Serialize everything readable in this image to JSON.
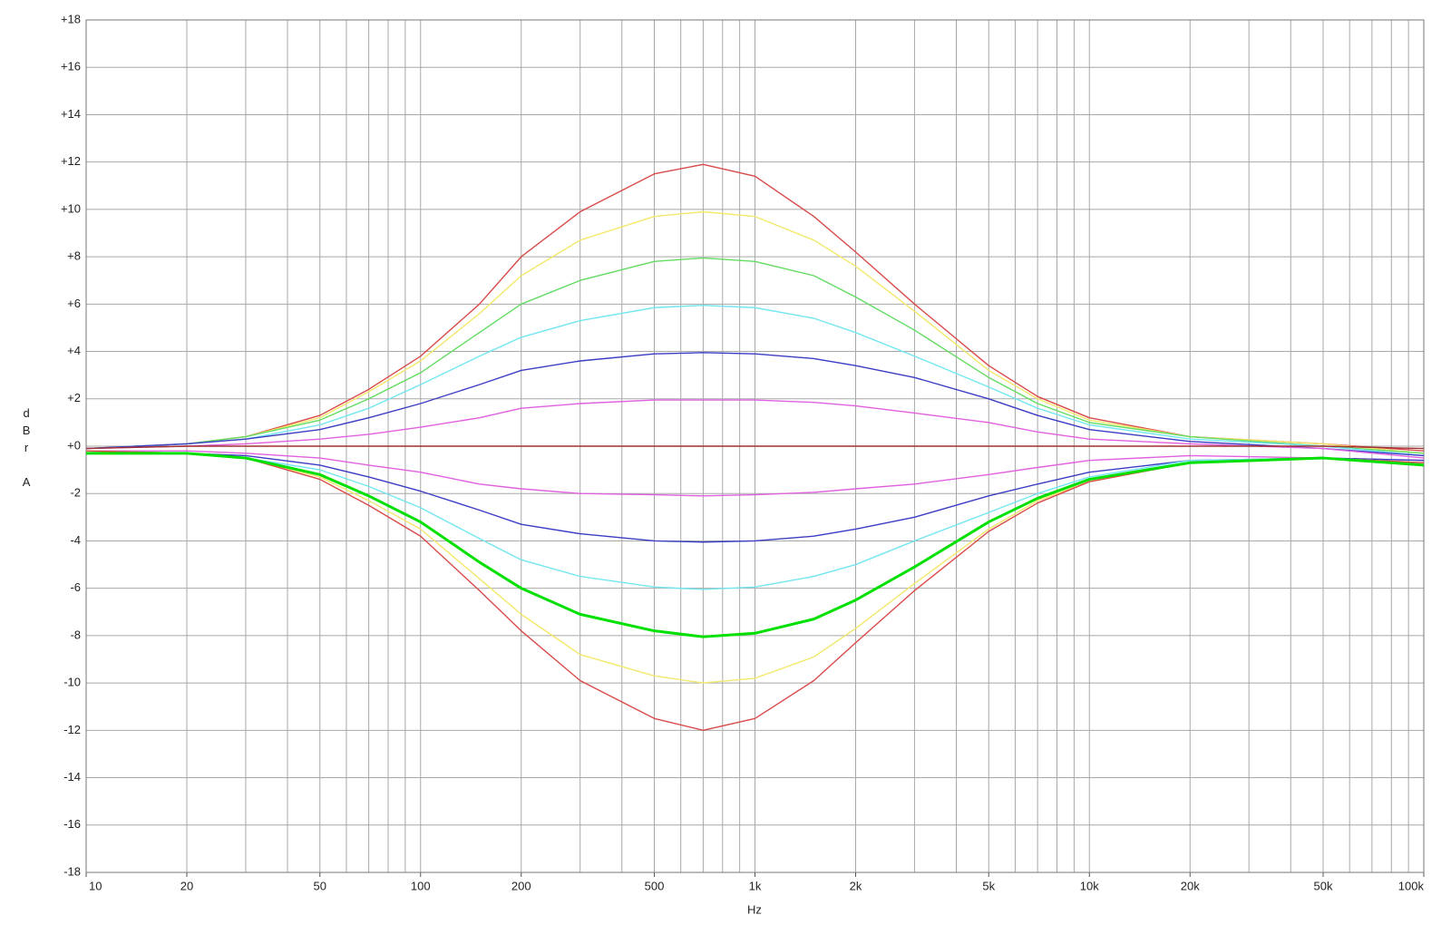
{
  "chart_data": {
    "type": "line",
    "x_label": "Hz",
    "y_label": "dBr A",
    "xscale": "log",
    "xlim": [
      10,
      100000
    ],
    "ylim": [
      -18,
      18
    ],
    "xgrid": [
      10,
      20,
      30,
      40,
      50,
      60,
      70,
      80,
      90,
      100,
      200,
      300,
      400,
      500,
      600,
      700,
      800,
      900,
      1000,
      2000,
      3000,
      4000,
      5000,
      6000,
      7000,
      8000,
      9000,
      10000,
      20000,
      30000,
      40000,
      50000,
      60000,
      70000,
      80000,
      90000,
      100000
    ],
    "xticks": [
      {
        "value": 10,
        "label": "10"
      },
      {
        "value": 20,
        "label": "20"
      },
      {
        "value": 50,
        "label": "50"
      },
      {
        "value": 100,
        "label": "100"
      },
      {
        "value": 200,
        "label": "200"
      },
      {
        "value": 500,
        "label": "500"
      },
      {
        "value": 1000,
        "label": "1k"
      },
      {
        "value": 2000,
        "label": "2k"
      },
      {
        "value": 5000,
        "label": "5k"
      },
      {
        "value": 10000,
        "label": "10k"
      },
      {
        "value": 20000,
        "label": "20k"
      },
      {
        "value": 50000,
        "label": "50k"
      },
      {
        "value": 100000,
        "label": "100k"
      }
    ],
    "yticks": [
      {
        "value": 18,
        "label": "+18"
      },
      {
        "value": 16,
        "label": "+16"
      },
      {
        "value": 14,
        "label": "+14"
      },
      {
        "value": 12,
        "label": "+12"
      },
      {
        "value": 10,
        "label": "+10"
      },
      {
        "value": 8,
        "label": "+8"
      },
      {
        "value": 6,
        "label": "+6"
      },
      {
        "value": 4,
        "label": "+4"
      },
      {
        "value": 2,
        "label": "+2"
      },
      {
        "value": 0,
        "label": "+0"
      },
      -2,
      -4,
      -6,
      -8,
      -10,
      -12,
      -14,
      -16,
      -18
    ],
    "grid": true,
    "x": [
      10,
      20,
      30,
      50,
      70,
      100,
      150,
      200,
      300,
      500,
      700,
      1000,
      1500,
      2000,
      3000,
      5000,
      7000,
      10000,
      20000,
      50000,
      100000
    ],
    "series": [
      {
        "color": "#d94a4a",
        "values": [
          -0.1,
          0.1,
          0.4,
          1.3,
          2.4,
          3.8,
          6.0,
          8.0,
          9.9,
          11.5,
          11.9,
          11.4,
          9.7,
          8.2,
          6.0,
          3.4,
          2.1,
          1.2,
          0.4,
          0.1,
          -0.2
        ]
      },
      {
        "color": "#f2e86a",
        "values": [
          -0.1,
          0.1,
          0.4,
          1.2,
          2.3,
          3.6,
          5.6,
          7.2,
          8.7,
          9.7,
          9.9,
          9.7,
          8.7,
          7.6,
          5.7,
          3.2,
          2.0,
          1.1,
          0.4,
          0.1,
          -0.3
        ]
      },
      {
        "color": "#62dc62",
        "values": [
          -0.1,
          0.1,
          0.4,
          1.1,
          2.0,
          3.1,
          4.8,
          6.0,
          7.0,
          7.8,
          7.95,
          7.8,
          7.2,
          6.3,
          4.9,
          2.9,
          1.8,
          1.0,
          0.4,
          0.0,
          -0.3
        ]
      },
      {
        "color": "#72e6f0",
        "values": [
          -0.1,
          0.1,
          0.3,
          0.9,
          1.6,
          2.6,
          3.8,
          4.6,
          5.3,
          5.85,
          5.95,
          5.85,
          5.4,
          4.8,
          3.8,
          2.5,
          1.6,
          0.9,
          0.3,
          0.0,
          -0.4
        ]
      },
      {
        "color": "#3c3cc4",
        "values": [
          -0.1,
          0.1,
          0.3,
          0.7,
          1.2,
          1.8,
          2.6,
          3.2,
          3.6,
          3.9,
          3.95,
          3.9,
          3.7,
          3.4,
          2.9,
          2.0,
          1.3,
          0.7,
          0.2,
          -0.1,
          -0.4
        ]
      },
      {
        "color": "#e060e0",
        "values": [
          -0.1,
          0.0,
          0.1,
          0.3,
          0.5,
          0.8,
          1.2,
          1.6,
          1.8,
          1.95,
          1.95,
          1.95,
          1.85,
          1.7,
          1.4,
          1.0,
          0.6,
          0.3,
          0.1,
          -0.1,
          -0.5
        ]
      },
      {
        "color": "#a03030",
        "values": [
          -0.1,
          0,
          0,
          0,
          0,
          0,
          0,
          0,
          0,
          0,
          0,
          0,
          0,
          0,
          0,
          0,
          0,
          0,
          0,
          0,
          -0.1
        ]
      },
      {
        "color": "#e060e0",
        "values": [
          -0.2,
          -0.2,
          -0.3,
          -0.5,
          -0.8,
          -1.1,
          -1.6,
          -1.8,
          -2.0,
          -2.05,
          -2.1,
          -2.05,
          -1.95,
          -1.8,
          -1.6,
          -1.2,
          -0.9,
          -0.6,
          -0.4,
          -0.5,
          -0.6
        ]
      },
      {
        "color": "#3c3cc4",
        "values": [
          -0.2,
          -0.3,
          -0.4,
          -0.8,
          -1.3,
          -1.9,
          -2.7,
          -3.3,
          -3.7,
          -4.0,
          -4.05,
          -4.0,
          -3.8,
          -3.5,
          -3.0,
          -2.1,
          -1.6,
          -1.1,
          -0.6,
          -0.5,
          -0.6
        ]
      },
      {
        "color": "#72e6f0",
        "values": [
          -0.2,
          -0.3,
          -0.5,
          -1.0,
          -1.7,
          -2.6,
          -3.9,
          -4.8,
          -5.5,
          -5.95,
          -6.05,
          -5.95,
          -5.5,
          -5.0,
          -4.0,
          -2.8,
          -2.0,
          -1.3,
          -0.6,
          -0.5,
          -0.7
        ]
      },
      {
        "color": "#f2e86a",
        "values": [
          -0.2,
          -0.3,
          -0.5,
          -1.3,
          -2.3,
          -3.5,
          -5.6,
          -7.1,
          -8.8,
          -9.7,
          -10.0,
          -9.8,
          -8.9,
          -7.7,
          -5.8,
          -3.5,
          -2.3,
          -1.5,
          -0.7,
          -0.5,
          -0.7
        ]
      },
      {
        "color": "#d94a4a",
        "values": [
          -0.2,
          -0.3,
          -0.5,
          -1.4,
          -2.5,
          -3.8,
          -6.1,
          -7.8,
          -9.9,
          -11.5,
          -12.0,
          -11.5,
          -9.9,
          -8.3,
          -6.1,
          -3.6,
          -2.4,
          -1.5,
          -0.7,
          -0.5,
          -0.7
        ]
      },
      {
        "color": "#00e000",
        "line_width": 3,
        "values": [
          -0.3,
          -0.3,
          -0.5,
          -1.2,
          -2.1,
          -3.2,
          -4.9,
          -6.0,
          -7.1,
          -7.8,
          -8.05,
          -7.9,
          -7.3,
          -6.5,
          -5.1,
          -3.2,
          -2.2,
          -1.4,
          -0.7,
          -0.5,
          -0.8
        ]
      }
    ]
  }
}
